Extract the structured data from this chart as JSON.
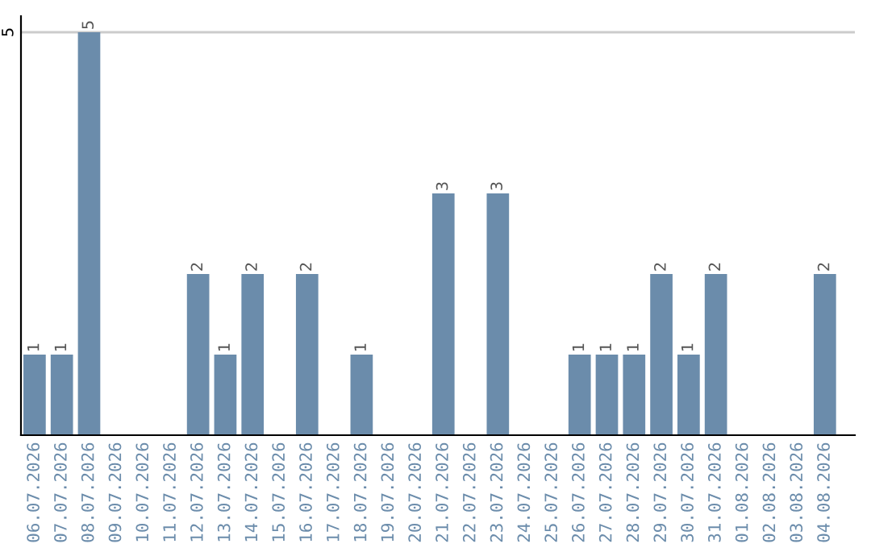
{
  "chart_data": {
    "type": "bar",
    "categories": [
      "06.07.2026",
      "07.07.2026",
      "08.07.2026",
      "09.07.2026",
      "10.07.2026",
      "11.07.2026",
      "12.07.2026",
      "13.07.2026",
      "14.07.2026",
      "15.07.2026",
      "16.07.2026",
      "17.07.2026",
      "18.07.2026",
      "19.07.2026",
      "20.07.2026",
      "21.07.2026",
      "22.07.2026",
      "23.07.2026",
      "24.07.2026",
      "25.07.2026",
      "26.07.2026",
      "27.07.2026",
      "28.07.2026",
      "29.07.2026",
      "30.07.2026",
      "31.07.2026",
      "01.08.2026",
      "02.08.2026",
      "03.08.2026",
      "04.08.2026"
    ],
    "values": [
      1,
      1,
      5,
      0,
      0,
      0,
      2,
      1,
      2,
      0,
      2,
      0,
      1,
      0,
      0,
      3,
      0,
      3,
      0,
      0,
      1,
      1,
      1,
      2,
      1,
      2,
      0,
      0,
      0,
      2
    ],
    "value_labels": [
      "1",
      "1",
      "5",
      null,
      null,
      null,
      "2",
      "1",
      "2",
      null,
      "2",
      null,
      "1",
      null,
      null,
      "3",
      null,
      "3",
      null,
      null,
      "1",
      "1",
      "1",
      "2",
      "1",
      "2",
      null,
      null,
      null,
      "2"
    ],
    "color": "#6b8cab",
    "ylim": [
      0,
      5.2
    ],
    "yticks": [
      5
    ],
    "grid": "y"
  }
}
